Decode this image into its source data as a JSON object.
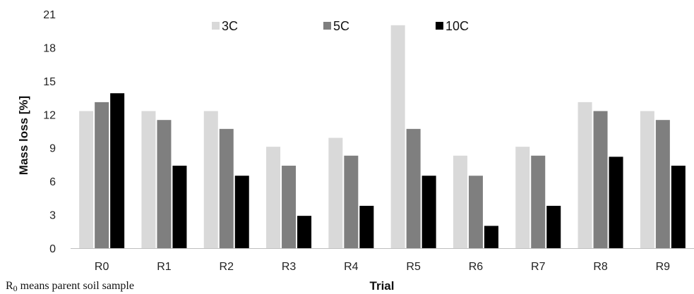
{
  "chart_data": {
    "type": "bar",
    "title": "",
    "xlabel": "Trial",
    "ylabel": "Mass loss [%]",
    "ylim": [
      0,
      21
    ],
    "yticks": [
      0,
      3,
      6,
      9,
      12,
      15,
      18,
      21
    ],
    "categories": [
      "R0",
      "R1",
      "R2",
      "R3",
      "R4",
      "R5",
      "R6",
      "R7",
      "R8",
      "R9"
    ],
    "series": [
      {
        "name": "3C",
        "color": "#d9d9d9",
        "values": [
          12.3,
          12.3,
          12.3,
          9.1,
          9.9,
          20.0,
          8.3,
          9.1,
          13.1,
          12.3
        ]
      },
      {
        "name": "5C",
        "color": "#7f7f7f",
        "values": [
          13.1,
          11.5,
          10.7,
          7.4,
          8.3,
          10.7,
          6.5,
          8.3,
          12.3,
          11.5
        ]
      },
      {
        "name": "10C",
        "color": "#000000",
        "values": [
          13.9,
          7.4,
          6.5,
          2.9,
          3.8,
          6.5,
          2.0,
          3.8,
          8.2,
          7.4
        ]
      }
    ],
    "legend_position": "top",
    "grid": false
  },
  "footnote": {
    "base": "R",
    "subscript": "0",
    "rest": " means parent soil sample"
  }
}
